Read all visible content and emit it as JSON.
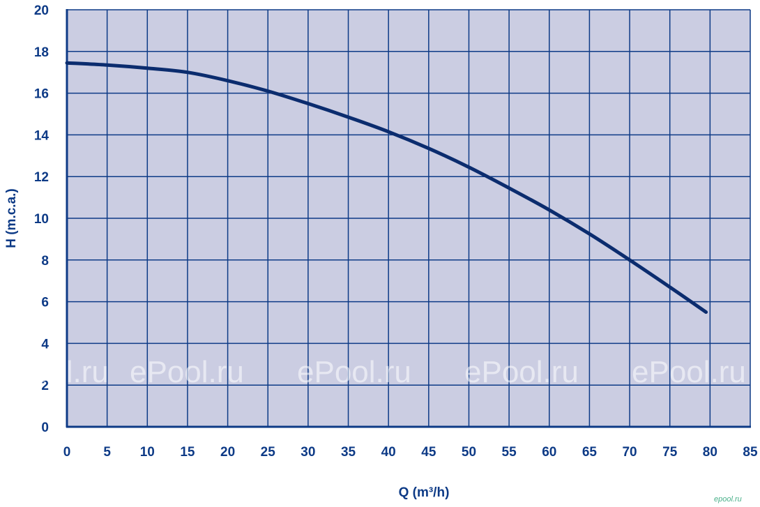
{
  "chart_data": {
    "type": "line",
    "xlabel": "Q (m³/h)",
    "ylabel": "H (m.c.a.)",
    "xlim": [
      0,
      85
    ],
    "ylim": [
      0,
      20
    ],
    "x_ticks": [
      0,
      5,
      10,
      15,
      20,
      25,
      30,
      35,
      40,
      45,
      50,
      55,
      60,
      65,
      70,
      75,
      80,
      85
    ],
    "y_ticks": [
      0,
      2,
      4,
      6,
      8,
      10,
      12,
      14,
      16,
      18,
      20
    ],
    "grid": true,
    "series": [
      {
        "x": [
          0,
          5,
          10,
          15,
          20,
          25,
          30,
          35,
          40,
          45,
          50,
          55,
          60,
          65,
          70,
          75,
          79.5
        ],
        "y": [
          17.45,
          17.35,
          17.2,
          17.0,
          16.6,
          16.1,
          15.5,
          14.85,
          14.15,
          13.35,
          12.45,
          11.45,
          10.4,
          9.25,
          8.0,
          6.7,
          5.5
        ]
      }
    ],
    "colors": {
      "plot_background": "#cbcde2",
      "grid": "#0d3a86",
      "curve": "#0b2c6e",
      "text": "#0d3a86"
    }
  },
  "watermarks": [
    "ePool.ru",
    "ePool.ru",
    "ePool.ru",
    "ePool.ru",
    "ePool.ru"
  ],
  "corner_mark": "epool.ru"
}
